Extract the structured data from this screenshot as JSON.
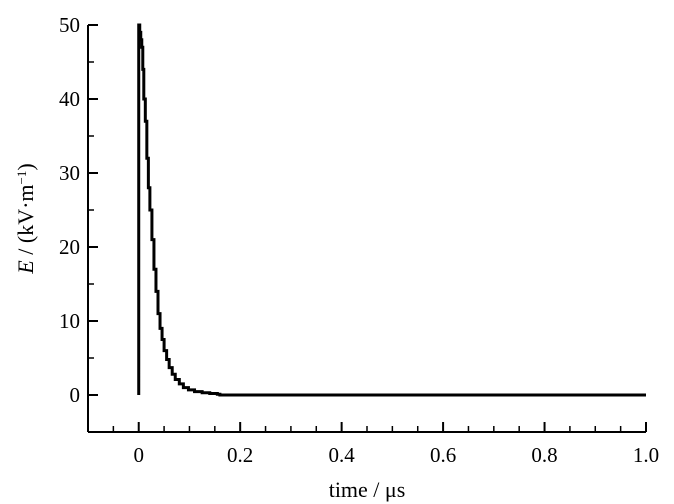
{
  "chart_data": {
    "type": "line",
    "title": "",
    "xlabel": "time / μs",
    "ylabel_var": "E",
    "ylabel_unit": " / (kV·m",
    "ylabel_sup": "−1",
    "ylabel_close": ")",
    "xlim": [
      -0.1,
      1.0
    ],
    "ylim": [
      -5,
      50
    ],
    "xticks": [
      {
        "value": 0.0,
        "label": "0"
      },
      {
        "value": 0.2,
        "label": "0.2"
      },
      {
        "value": 0.4,
        "label": "0.4"
      },
      {
        "value": 0.6,
        "label": "0.6"
      },
      {
        "value": 0.8,
        "label": "0.8"
      },
      {
        "value": 1.0,
        "label": "1.0"
      }
    ],
    "yticks": [
      {
        "value": 0,
        "label": "0"
      },
      {
        "value": 10,
        "label": "10"
      },
      {
        "value": 20,
        "label": "20"
      },
      {
        "value": 30,
        "label": "30"
      },
      {
        "value": 40,
        "label": "40"
      },
      {
        "value": 50,
        "label": "50"
      }
    ],
    "x_minor_step": 0.05,
    "y_minor_step": 5,
    "grid": false,
    "colors": {
      "line": "#000000",
      "axis": "#000000",
      "background": "#ffffff"
    },
    "series": [
      {
        "x": [
          0.0,
          0.0,
          0.002,
          0.004,
          0.006,
          0.008,
          0.01,
          0.013,
          0.016,
          0.019,
          0.022,
          0.026,
          0.03,
          0.034,
          0.038,
          0.042,
          0.046,
          0.05,
          0.055,
          0.06,
          0.066,
          0.072,
          0.08,
          0.088,
          0.098,
          0.11,
          0.125,
          0.14,
          0.155,
          0.16,
          0.2,
          0.4,
          0.6,
          0.8,
          1.0
        ],
        "y": [
          0,
          50,
          49,
          48,
          47,
          44,
          40,
          37,
          32,
          28,
          25,
          21,
          17,
          14,
          11,
          9,
          7.5,
          6,
          4.8,
          3.7,
          2.8,
          2.1,
          1.5,
          1.0,
          0.7,
          0.45,
          0.3,
          0.2,
          0.1,
          0,
          0,
          0,
          0,
          0,
          0
        ]
      }
    ]
  }
}
